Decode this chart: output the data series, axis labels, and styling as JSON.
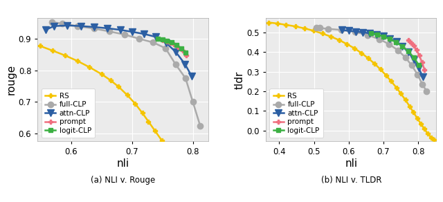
{
  "plot1": {
    "subtitle": "(a) NLI v. Rouge",
    "xlabel": "nli",
    "ylabel": "rouge",
    "xlim": [
      0.545,
      0.825
    ],
    "ylim": [
      0.575,
      0.965
    ],
    "xticks": [
      0.6,
      0.7,
      0.8
    ],
    "yticks": [
      0.6,
      0.7,
      0.8,
      0.9
    ],
    "RS": {
      "x": [
        0.549,
        0.57,
        0.59,
        0.61,
        0.63,
        0.65,
        0.665,
        0.678,
        0.692,
        0.705,
        0.717,
        0.727,
        0.738,
        0.749
      ],
      "y": [
        0.877,
        0.862,
        0.847,
        0.83,
        0.81,
        0.788,
        0.768,
        0.748,
        0.722,
        0.695,
        0.665,
        0.638,
        0.608,
        0.578
      ],
      "color": "#f5c400",
      "marker": "P",
      "markersize": 5,
      "linewidth": 1.8
    },
    "full_CLP": {
      "x": [
        0.568,
        0.585,
        0.61,
        0.638,
        0.663,
        0.688,
        0.712,
        0.735,
        0.755,
        0.772,
        0.788,
        0.8,
        0.812
      ],
      "y": [
        0.953,
        0.948,
        0.94,
        0.932,
        0.923,
        0.913,
        0.9,
        0.888,
        0.87,
        0.818,
        0.775,
        0.7,
        0.625
      ],
      "color": "#aaaaaa",
      "marker": "o",
      "markersize": 6,
      "linewidth": 1.8
    },
    "attn_CLP": {
      "x": [
        0.558,
        0.572,
        0.594,
        0.616,
        0.638,
        0.66,
        0.681,
        0.7,
        0.72,
        0.739,
        0.756,
        0.772,
        0.787,
        0.798
      ],
      "y": [
        0.928,
        0.94,
        0.942,
        0.94,
        0.937,
        0.933,
        0.928,
        0.922,
        0.915,
        0.906,
        0.887,
        0.858,
        0.82,
        0.782
      ],
      "color": "#2c5fa3",
      "marker": "v",
      "markersize": 7,
      "linewidth": 1.8
    },
    "prompt": {
      "x": [
        0.75,
        0.757,
        0.763,
        0.769,
        0.776,
        0.783,
        0.789
      ],
      "y": [
        0.896,
        0.891,
        0.887,
        0.882,
        0.874,
        0.863,
        0.848
      ],
      "color": "#f07080",
      "marker": "P",
      "markersize": 5,
      "linewidth": 1.8
    },
    "logit_CLP": {
      "x": [
        0.743,
        0.75,
        0.757,
        0.765,
        0.773,
        0.781,
        0.788
      ],
      "y": [
        0.9,
        0.897,
        0.893,
        0.888,
        0.88,
        0.87,
        0.856
      ],
      "color": "#3cb043",
      "marker": "s",
      "markersize": 4,
      "linewidth": 1.8
    }
  },
  "plot2": {
    "subtitle": "(b) NLI v. TLDR",
    "xlabel": "nli",
    "ylabel": "tldr",
    "xlim": [
      0.362,
      0.852
    ],
    "ylim": [
      -0.055,
      0.572
    ],
    "xticks": [
      0.4,
      0.5,
      0.6,
      0.7,
      0.8
    ],
    "yticks": [
      0.0,
      0.1,
      0.2,
      0.3,
      0.4,
      0.5
    ],
    "RS": {
      "x": [
        0.37,
        0.395,
        0.42,
        0.447,
        0.473,
        0.499,
        0.524,
        0.549,
        0.572,
        0.595,
        0.617,
        0.637,
        0.656,
        0.674,
        0.691,
        0.707,
        0.722,
        0.737,
        0.75,
        0.763,
        0.775,
        0.786,
        0.797,
        0.807,
        0.817,
        0.827,
        0.837,
        0.845
      ],
      "y": [
        0.55,
        0.545,
        0.538,
        0.53,
        0.52,
        0.508,
        0.494,
        0.478,
        0.461,
        0.44,
        0.418,
        0.394,
        0.368,
        0.341,
        0.312,
        0.282,
        0.251,
        0.219,
        0.188,
        0.156,
        0.124,
        0.093,
        0.063,
        0.035,
        0.01,
        -0.015,
        -0.035,
        -0.048
      ],
      "color": "#f5c400",
      "marker": "P",
      "markersize": 5,
      "linewidth": 1.8
    },
    "full_CLP": {
      "x": [
        0.506,
        0.516,
        0.54,
        0.578,
        0.618,
        0.655,
        0.688,
        0.716,
        0.742,
        0.763,
        0.781,
        0.798,
        0.812,
        0.824
      ],
      "y": [
        0.524,
        0.522,
        0.518,
        0.512,
        0.502,
        0.486,
        0.465,
        0.44,
        0.408,
        0.372,
        0.332,
        0.285,
        0.235,
        0.2
      ],
      "color": "#aaaaaa",
      "marker": "o",
      "markersize": 6,
      "linewidth": 1.8
    },
    "attn_CLP": {
      "x": [
        0.58,
        0.601,
        0.621,
        0.641,
        0.661,
        0.68,
        0.699,
        0.718,
        0.737,
        0.754,
        0.771,
        0.787,
        0.801,
        0.813
      ],
      "y": [
        0.512,
        0.508,
        0.504,
        0.5,
        0.495,
        0.489,
        0.481,
        0.469,
        0.452,
        0.43,
        0.4,
        0.362,
        0.318,
        0.275
      ],
      "color": "#2c5fa3",
      "marker": "v",
      "markersize": 7,
      "linewidth": 1.8
    },
    "prompt": {
      "x": [
        0.772,
        0.78,
        0.787,
        0.795,
        0.803,
        0.811,
        0.818
      ],
      "y": [
        0.462,
        0.448,
        0.432,
        0.41,
        0.382,
        0.346,
        0.31
      ],
      "color": "#f07080",
      "marker": "P",
      "markersize": 5,
      "linewidth": 1.8
    },
    "logit_CLP": {
      "x": [
        0.665,
        0.682,
        0.7,
        0.718,
        0.736,
        0.754,
        0.771,
        0.787,
        0.801
      ],
      "y": [
        0.497,
        0.489,
        0.479,
        0.466,
        0.45,
        0.43,
        0.404,
        0.372,
        0.335
      ],
      "color": "#3cb043",
      "marker": "s",
      "markersize": 4,
      "linewidth": 1.8
    }
  },
  "legend_labels": [
    "RS",
    "full-CLP",
    "attn-CLP",
    "prompt",
    "logit-CLP"
  ],
  "background_color": "#ebebeb",
  "grid_color": "#ffffff",
  "fig_bg": "#ffffff"
}
